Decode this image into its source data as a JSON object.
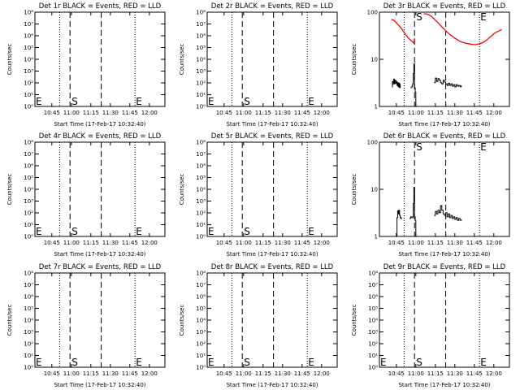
{
  "start_time_label": "Start Time (17-Feb-17 10:32:40)",
  "event_markers": {
    "start": "S",
    "end": "E"
  },
  "colors": {
    "events": "#000000",
    "lld": "#ff0000",
    "axes": "#000000"
  },
  "chart_data": [
    {
      "type": "line",
      "title": "Det 1r BLACK = Events, RED = LLD",
      "ylabel": "Counts/sec",
      "xlabel": "Start Time (17-Feb-17 10:32:40)",
      "y_scale": "log",
      "ylim": [
        1,
        100000000
      ],
      "y_ticks": [
        "10⁰",
        "10¹",
        "10²",
        "10³",
        "10⁴",
        "10⁵",
        "10⁶",
        "10⁷",
        "10⁸"
      ],
      "xlim": [
        "10:32",
        "12:12"
      ],
      "x_ticks": [
        "10:45",
        "11:00",
        "11:15",
        "11:30",
        "11:45",
        "12:00"
      ],
      "dotted_lines": [
        "10:51",
        "11:49"
      ],
      "dashed_lines": [
        "10:59",
        "11:23"
      ],
      "series": []
    },
    {
      "type": "line",
      "title": "Det 2r BLACK = Events, RED = LLD",
      "ylabel": "Counts/sec",
      "xlabel": "Start Time (17-Feb-17 10:32:40)",
      "y_scale": "log",
      "ylim": [
        1,
        100000000
      ],
      "y_ticks": [
        "10⁰",
        "10¹",
        "10²",
        "10³",
        "10⁴",
        "10⁵",
        "10⁶",
        "10⁷",
        "10⁸"
      ],
      "xlim": [
        "10:32",
        "12:12"
      ],
      "x_ticks": [
        "10:45",
        "11:00",
        "11:15",
        "11:30",
        "11:45",
        "12:00"
      ],
      "dotted_lines": [
        "10:51",
        "11:49"
      ],
      "dashed_lines": [
        "10:59",
        "11:23"
      ],
      "series": []
    },
    {
      "type": "line",
      "title": "Det 3r BLACK = Events, RED = LLD",
      "ylabel": "Counts/sec",
      "xlabel": "Start Time (17-Feb-17 10:32:40)",
      "y_scale": "log",
      "ylim": [
        1,
        100
      ],
      "y_ticks": [
        "1",
        "10",
        "100"
      ],
      "xlim": [
        "10:32",
        "12:12"
      ],
      "x_ticks": [
        "10:45",
        "11:00",
        "11:15",
        "11:30",
        "11:45",
        "12:00"
      ],
      "dotted_lines": [
        "10:51",
        "11:49"
      ],
      "dashed_lines": [
        "10:59",
        "11:23"
      ],
      "series": [
        {
          "color": "lld",
          "segments": [
            {
              "x": [
                "10:41",
                "10:43",
                "10:45",
                "10:47",
                "10:49",
                "10:51",
                "10:53",
                "10:55",
                "10:57",
                "10:58.5",
                "10:59"
              ],
              "y": [
                70,
                68,
                60,
                52,
                45,
                37,
                31,
                27,
                24,
                22,
                28
              ]
            },
            {
              "x": [
                "11:06",
                "11:08",
                "11:10",
                "11:12",
                "11:14",
                "11:16",
                "11:18",
                "11:20",
                "11:22",
                "11:24",
                "11:26",
                "11:28",
                "11:30",
                "11:32",
                "11:34",
                "11:36",
                "11:38",
                "11:40",
                "11:42",
                "11:44",
                "11:46",
                "11:48",
                "11:50",
                "11:52",
                "11:54",
                "11:56",
                "11:58",
                "12:00",
                "12:02",
                "12:04",
                "12:06"
              ],
              "y": [
                92,
                92,
                88,
                82,
                72,
                64,
                56,
                49,
                43,
                38,
                34,
                31,
                28,
                26,
                24,
                23,
                22,
                21.5,
                21,
                20.5,
                20.5,
                21,
                22,
                23,
                25,
                28,
                31,
                35,
                38,
                40,
                43
              ]
            }
          ]
        },
        {
          "color": "events",
          "segments": [
            {
              "x": [
                "10:41.5",
                "10:42",
                "10:42.5",
                "10:43",
                "10:43.5",
                "10:44",
                "10:44.5",
                "10:45",
                "10:45.5",
                "10:46",
                "10:46.5",
                "10:47",
                "10:47.5",
                "10:48"
              ],
              "y": [
                2.6,
                3.4,
                3.0,
                3.8,
                3.0,
                3.6,
                3.1,
                3.4,
                2.8,
                3.2,
                2.6,
                3.1,
                2.5,
                3.0
              ]
            },
            {
              "x": [
                "10:56",
                "10:57",
                "10:57.5",
                "10:58",
                "10:58.5",
                "10:59",
                "10:59.5",
                "11:00"
              ],
              "y": [
                2.5,
                2.7,
                3.0,
                5.0,
                8.0,
                2.5,
                2.0,
                1.0
              ]
            },
            {
              "x": [
                "11:14",
                "11:15",
                "11:16",
                "11:17",
                "11:18",
                "11:19",
                "11:20",
                "11:21",
                "11:22",
                "11:23",
                "11:24",
                "11:25",
                "11:26",
                "11:27",
                "11:28",
                "11:29",
                "11:30",
                "11:31",
                "11:32",
                "11:33",
                "11:34",
                "11:35"
              ],
              "y": [
                3.2,
                4.0,
                3.4,
                3.9,
                3.6,
                3.2,
                3.0,
                3.6,
                3.3,
                3.0,
                2.8,
                3.1,
                2.8,
                3.0,
                2.7,
                2.9,
                2.6,
                2.9,
                2.7,
                2.8,
                2.6,
                2.8
              ]
            }
          ]
        }
      ]
    },
    {
      "type": "line",
      "title": "Det 4r BLACK = Events, RED = LLD",
      "ylabel": "Counts/sec",
      "xlabel": "Start Time (17-Feb-17 10:32:40)",
      "y_scale": "log",
      "ylim": [
        1,
        100000000
      ],
      "y_ticks": [
        "10⁰",
        "10¹",
        "10²",
        "10³",
        "10⁴",
        "10⁵",
        "10⁶",
        "10⁷",
        "10⁸"
      ],
      "xlim": [
        "10:32",
        "12:12"
      ],
      "x_ticks": [
        "10:45",
        "11:00",
        "11:15",
        "11:30",
        "11:45",
        "12:00"
      ],
      "dotted_lines": [
        "10:51",
        "11:49"
      ],
      "dashed_lines": [
        "10:59",
        "11:23"
      ],
      "series": []
    },
    {
      "type": "line",
      "title": "Det 5r BLACK = Events, RED = LLD",
      "ylabel": "Counts/sec",
      "xlabel": "Start Time (17-Feb-17 10:32:40)",
      "y_scale": "log",
      "ylim": [
        1,
        100000000
      ],
      "y_ticks": [
        "10⁰",
        "10¹",
        "10²",
        "10³",
        "10⁴",
        "10⁵",
        "10⁶",
        "10⁷",
        "10⁸"
      ],
      "xlim": [
        "10:32",
        "12:12"
      ],
      "x_ticks": [
        "10:45",
        "11:00",
        "11:15",
        "11:30",
        "11:45",
        "12:00"
      ],
      "dotted_lines": [
        "10:51",
        "11:49"
      ],
      "dashed_lines": [
        "10:59",
        "11:23"
      ],
      "series": []
    },
    {
      "type": "line",
      "title": "Det 6r BLACK = Events, RED = LLD",
      "ylabel": "Counts/sec",
      "xlabel": "Start Time (17-Feb-17 10:32:40)",
      "y_scale": "log",
      "ylim": [
        1,
        100
      ],
      "y_ticks": [
        "1",
        "10",
        "100"
      ],
      "xlim": [
        "10:32",
        "12:12"
      ],
      "x_ticks": [
        "10:45",
        "11:00",
        "11:15",
        "11:30",
        "11:45",
        "12:00"
      ],
      "dotted_lines": [
        "10:51",
        "11:49"
      ],
      "dashed_lines": [
        "10:59",
        "11:23"
      ],
      "series": [
        {
          "color": "events",
          "segments": [
            {
              "x": [
                "10:45",
                "10:45.5",
                "10:46",
                "10:46.5",
                "10:47",
                "10:47.5",
                "10:48",
                "10:48.5",
                "10:49"
              ],
              "y": [
                1.0,
                2.5,
                3.5,
                3.0,
                3.6,
                2.8,
                2.5,
                2.4,
                2.5
              ]
            },
            {
              "x": [
                "10:55",
                "10:56",
                "10:57",
                "10:58",
                "10:58.5",
                "10:59",
                "10:59.5",
                "11:00"
              ],
              "y": [
                2.4,
                2.6,
                2.5,
                5.0,
                11.0,
                2.6,
                2.2,
                1.0
              ]
            },
            {
              "x": [
                "11:14",
                "11:15",
                "11:16",
                "11:17",
                "11:18",
                "11:19",
                "11:20",
                "11:21",
                "11:22",
                "11:23",
                "11:24",
                "11:25",
                "11:26",
                "11:27",
                "11:28",
                "11:29",
                "11:30",
                "11:31",
                "11:32",
                "11:33",
                "11:34",
                "11:35"
              ],
              "y": [
                2.8,
                3.4,
                3.0,
                3.6,
                3.2,
                4.5,
                3.6,
                3.0,
                2.8,
                3.2,
                2.6,
                3.0,
                2.5,
                2.8,
                2.4,
                2.6,
                2.3,
                2.5,
                2.2,
                2.4,
                2.2,
                2.3
              ]
            }
          ]
        }
      ]
    },
    {
      "type": "line",
      "title": "Det 7r BLACK = Events, RED = LLD",
      "ylabel": "Counts/sec",
      "xlabel": "Start Time (17-Feb-17 10:32:40)",
      "y_scale": "log",
      "ylim": [
        1,
        100000000
      ],
      "y_ticks": [
        "10⁰",
        "10¹",
        "10²",
        "10³",
        "10⁴",
        "10⁵",
        "10⁶",
        "10⁷",
        "10⁸"
      ],
      "xlim": [
        "10:32",
        "12:12"
      ],
      "x_ticks": [
        "10:45",
        "11:00",
        "11:15",
        "11:30",
        "11:45",
        "12:00"
      ],
      "dotted_lines": [
        "10:51",
        "11:49"
      ],
      "dashed_lines": [
        "10:59",
        "11:23"
      ],
      "series": []
    },
    {
      "type": "line",
      "title": "Det 8r BLACK = Events, RED = LLD",
      "ylabel": "Counts/sec",
      "xlabel": "Start Time (17-Feb-17 10:32:40)",
      "y_scale": "log",
      "ylim": [
        1,
        100000000
      ],
      "y_ticks": [
        "10⁰",
        "10¹",
        "10²",
        "10³",
        "10⁴",
        "10⁵",
        "10⁶",
        "10⁷",
        "10⁸"
      ],
      "xlim": [
        "10:32",
        "12:12"
      ],
      "x_ticks": [
        "10:45",
        "11:00",
        "11:15",
        "11:30",
        "11:45",
        "12:00"
      ],
      "dotted_lines": [
        "10:51",
        "11:49"
      ],
      "dashed_lines": [
        "10:59",
        "11:23"
      ],
      "series": []
    },
    {
      "type": "line",
      "title": "Det 9r BLACK = Events, RED = LLD",
      "ylabel": "Counts/sec",
      "xlabel": "Start Time (17-Feb-17 10:32:40)",
      "y_scale": "log",
      "ylim": [
        1,
        100000000
      ],
      "y_ticks": [
        "10⁰",
        "10¹",
        "10²",
        "10³",
        "10⁴",
        "10⁵",
        "10⁶",
        "10⁷",
        "10⁸"
      ],
      "xlim": [
        "10:32",
        "12:12"
      ],
      "x_ticks": [
        "10:45",
        "11:00",
        "11:15",
        "11:30",
        "11:45",
        "12:00"
      ],
      "dotted_lines": [
        "10:51",
        "11:49"
      ],
      "dashed_lines": [
        "10:59",
        "11:23"
      ],
      "series": []
    }
  ]
}
